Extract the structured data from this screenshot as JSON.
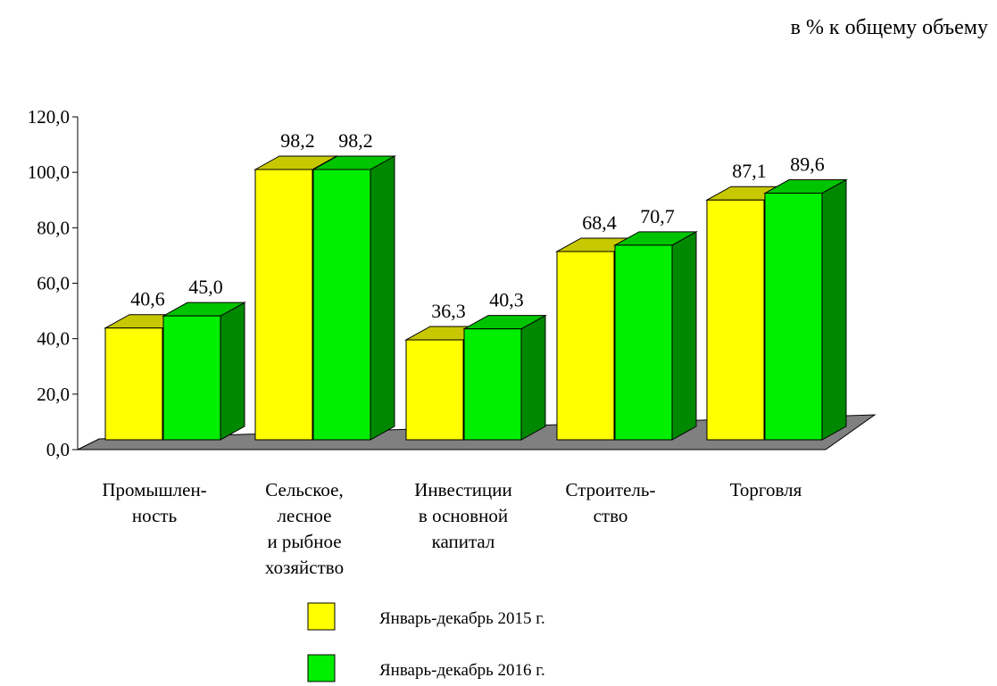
{
  "chart_data": {
    "type": "bar",
    "subtitle": "в % к общему объему",
    "categories": [
      [
        "Промышлен-",
        "ность"
      ],
      [
        "Сельское,",
        "лесное",
        "и рыбное",
        "хозяйство"
      ],
      [
        "Инвестиции",
        "в основной",
        "капитал"
      ],
      [
        "Строитель-",
        "ство"
      ],
      [
        "Торговля"
      ]
    ],
    "series": [
      {
        "name": "Январь-декабрь 2015 г.",
        "values": [
          40.6,
          98.2,
          36.3,
          68.4,
          87.1
        ],
        "labels": [
          "40,6",
          "98,2",
          "36,3",
          "68,4",
          "87,1"
        ]
      },
      {
        "name": "Январь-декабрь 2016 г.",
        "values": [
          45.0,
          98.2,
          40.3,
          70.7,
          89.6
        ],
        "labels": [
          "45,0",
          "98,2",
          "40,3",
          "70,7",
          "89,6"
        ]
      }
    ],
    "yticks": [
      "0,0",
      "20,0",
      "40,0",
      "60,0",
      "80,0",
      "100,0",
      "120,0"
    ],
    "ylim": [
      0,
      120
    ],
    "legend_position": "bottom",
    "colors": {
      "series1_front": "#ffff00",
      "series1_top": "#c8c800",
      "series1_side": "#a0a000",
      "series2_front": "#00ee00",
      "series2_top": "#00c400",
      "series2_side": "#008800",
      "floor": "#808080"
    }
  }
}
